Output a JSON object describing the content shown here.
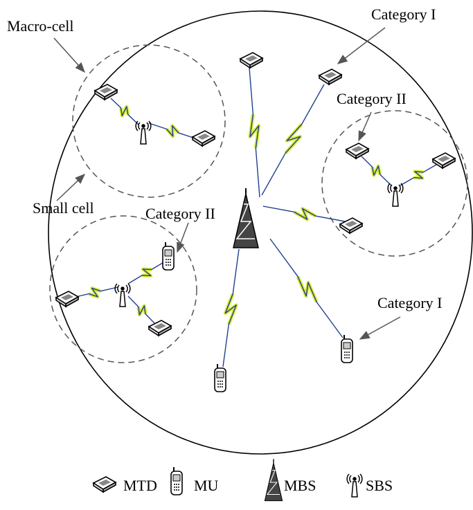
{
  "annotations": [
    {
      "text": "Macro-cell"
    },
    {
      "text": "Category I"
    },
    {
      "text": "Category II"
    },
    {
      "text": "Small cell"
    },
    {
      "text": "Category II"
    },
    {
      "text": "Category I"
    }
  ],
  "legend": [
    {
      "label": "MTD"
    },
    {
      "label": "MU"
    },
    {
      "label": "MBS"
    },
    {
      "label": "SBS"
    }
  ]
}
